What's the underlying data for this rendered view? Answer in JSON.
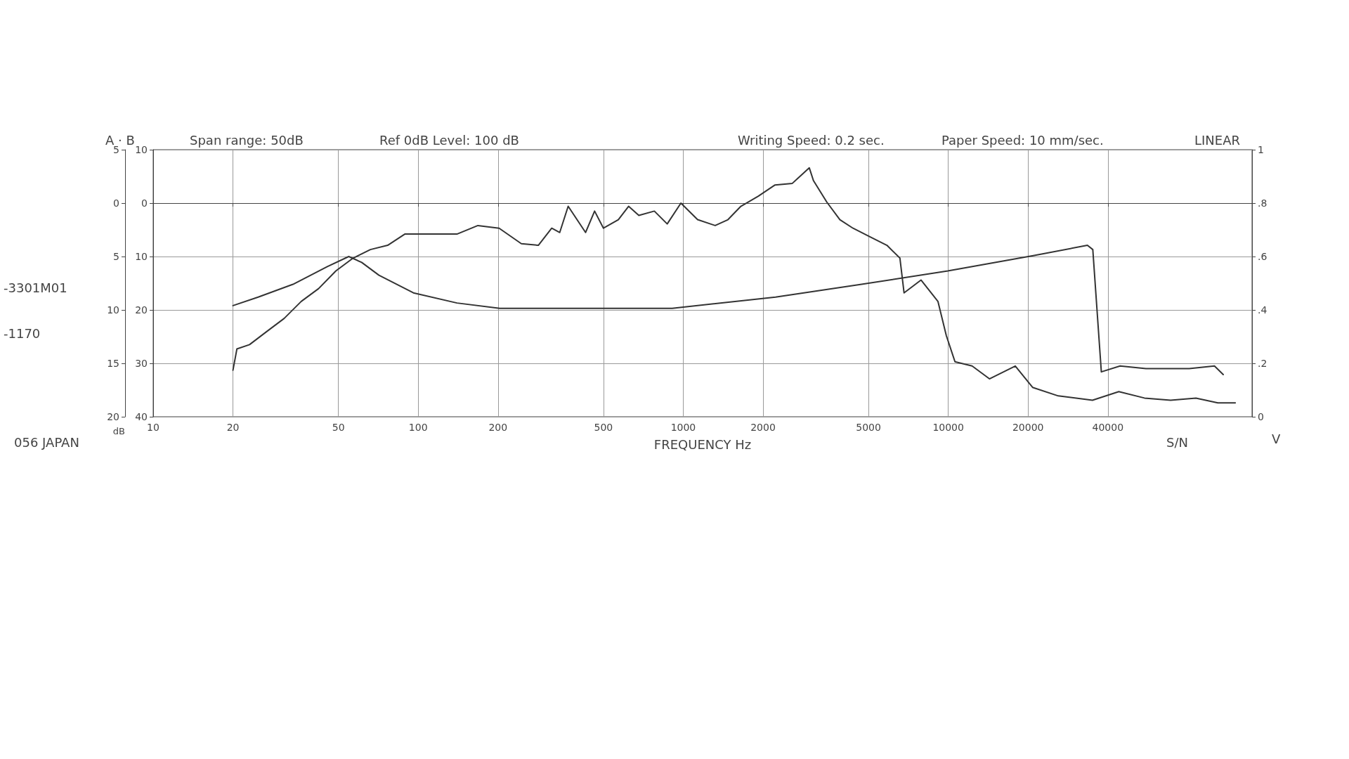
{
  "chart_data": {
    "type": "line",
    "xlabel": "FREQUENCY Hz",
    "ylabel": "dB",
    "annotations": [
      "A · B",
      "Span range: 50dB",
      "Ref 0dB Level: 100 dB",
      "Writing Speed: 0.2 sec.",
      "Paper Speed: 10 mm/sec.",
      "LINEAR",
      "-3301M01",
      "-1170",
      "056 JAPAN",
      "S/N",
      "V"
    ],
    "log": "x",
    "xlim": [
      10,
      140000
    ],
    "xticks": [
      10,
      20,
      50,
      100,
      200,
      500,
      1000,
      2000,
      5000,
      10000,
      20000,
      40000
    ],
    "ylim": [
      -40,
      10
    ],
    "yticks": [
      {
        "value": -40,
        "label": "40"
      },
      {
        "value": -30,
        "label": "30"
      },
      {
        "value": -20,
        "label": "20"
      },
      {
        "value": -10,
        "label": "10"
      },
      0,
      10
    ],
    "y2lim": [
      0,
      1.0
    ],
    "y2ticks": [
      0,
      {
        "value": 0.2,
        "label": ".2"
      },
      {
        "value": 0.4,
        "label": ".4"
      },
      {
        "value": 0.6,
        "label": ".6"
      },
      {
        "value": 0.8,
        "label": ".8"
      },
      1.0
    ],
    "y3lim": [
      -20,
      5
    ],
    "y3ticks": [
      {
        "value": -20,
        "label": "20"
      },
      {
        "value": -15,
        "label": "15"
      },
      {
        "value": -10,
        "label": "10"
      },
      {
        "value": -5,
        "label": "5"
      },
      0,
      5
    ],
    "grid": true,
    "marker": "none",
    "line_style": "solid",
    "series": [
      {
        "color": "#333333",
        "x": [
          20,
          20.7,
          23.1,
          26.9,
          31.2,
          36.2,
          42.1,
          48.9,
          56.8,
          66,
          76.7,
          89,
          140,
          168,
          202,
          245,
          284,
          319,
          342,
          368,
          428,
          463,
          500,
          569,
          622,
          680,
          778,
          870,
          980,
          1133,
          1320,
          1475,
          1650,
          1920,
          2220,
          2580,
          2990,
          3100,
          3480,
          3900,
          4370,
          5060,
          5870,
          6570,
          6810,
          7890,
          9140,
          9830,
          10600,
          12300,
          14300,
          17900,
          20800,
          26000,
          35000,
          44000,
          55000,
          69000,
          86000,
          104000,
          121000
        ],
        "values": [
          -31.3,
          -27.3,
          -26.5,
          -24,
          -21.6,
          -18.4,
          -16,
          -12.7,
          -10.3,
          -8.7,
          -7.9,
          -5.8,
          -5.8,
          -4.2,
          -4.7,
          -7.6,
          -7.9,
          -4.7,
          -5.5,
          -0.6,
          -5.5,
          -1.5,
          -4.7,
          -3.1,
          -0.6,
          -2.3,
          -1.5,
          -3.9,
          0,
          -3.1,
          -4.2,
          -3.1,
          -0.6,
          1.3,
          3.4,
          3.7,
          6.6,
          4.2,
          0.2,
          -3.1,
          -4.7,
          -6.3,
          -7.9,
          -10.3,
          -16.8,
          -14.4,
          -18.4,
          -24.8,
          -29.7,
          -30.5,
          -32.9,
          -30.5,
          -34.5,
          -36.1,
          -36.9,
          -35.3,
          -36.5,
          -36.9,
          -36.5,
          -37.4,
          -37.4
        ]
      },
      {
        "color": "#333333",
        "x": [
          20,
          24.9,
          33.7,
          45.4,
          54.7,
          61.2,
          71.1,
          95.9,
          140,
          203,
          499,
          908,
          2230,
          4710,
          9960,
          21100,
          33500,
          35100,
          37800,
          44500,
          55700,
          81100,
          101000,
          109000
        ],
        "values": [
          -19.2,
          -17.6,
          -15.2,
          -11.9,
          -10,
          -11.1,
          -13.5,
          -16.8,
          -18.7,
          -19.7,
          -19.7,
          -19.7,
          -17.6,
          -15.2,
          -12.7,
          -9.8,
          -7.9,
          -8.7,
          -31.6,
          -30.5,
          -31,
          -31,
          -30.5,
          -32.1
        ]
      }
    ]
  }
}
